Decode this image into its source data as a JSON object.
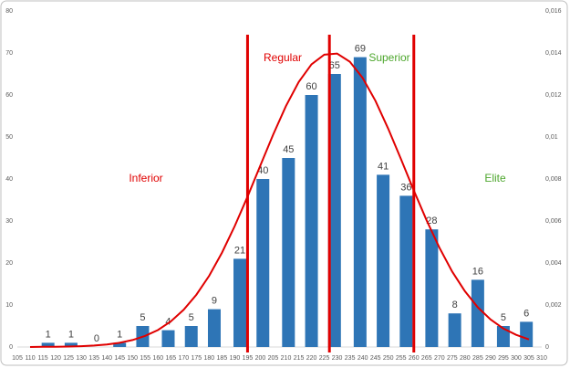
{
  "chart_data": {
    "type": "bar",
    "x": [
      117,
      126,
      136,
      145,
      154,
      164,
      173,
      182,
      192,
      201,
      211,
      220,
      229,
      239,
      248,
      257,
      267,
      276,
      285,
      295,
      304
    ],
    "values": [
      1,
      1,
      0,
      1,
      5,
      4,
      5,
      9,
      21,
      40,
      45,
      60,
      65,
      69,
      41,
      36,
      28,
      8,
      16,
      5,
      6
    ],
    "color": "#2e75b6",
    "xlim": [
      105,
      310
    ],
    "xticks": [
      105,
      110,
      115,
      120,
      125,
      130,
      135,
      140,
      145,
      150,
      155,
      160,
      165,
      170,
      175,
      180,
      185,
      190,
      195,
      200,
      205,
      210,
      215,
      220,
      225,
      230,
      235,
      240,
      245,
      250,
      255,
      260,
      265,
      270,
      275,
      280,
      285,
      290,
      295,
      300,
      305,
      310
    ],
    "ylim": [
      0,
      80
    ],
    "yticks": [
      0,
      10,
      20,
      30,
      40,
      50,
      60,
      70,
      80
    ],
    "y2lim": [
      0,
      0.016
    ],
    "y2ticks": [
      0,
      {
        "value": 0.002,
        "label": "0,002"
      },
      {
        "value": 0.004,
        "label": "0,004"
      },
      {
        "value": 0.006,
        "label": "0,006"
      },
      {
        "value": 0.008,
        "label": "0,008"
      },
      {
        "value": 0.01,
        "label": "0,01"
      },
      {
        "value": 0.012,
        "label": "0,012"
      },
      {
        "value": 0.014,
        "label": "0,014"
      },
      {
        "value": 0.016,
        "label": "0,016"
      }
    ],
    "curve": {
      "axis": "y2",
      "color": "#e00000",
      "x": [
        110,
        115,
        120,
        125,
        130,
        135,
        140,
        145,
        150,
        155,
        160,
        165,
        170,
        175,
        180,
        185,
        190,
        195,
        200,
        205,
        210,
        215,
        220,
        225,
        230,
        235,
        240,
        245,
        250,
        255,
        260,
        265,
        270,
        275,
        280,
        285,
        290,
        295,
        300,
        305
      ],
      "values": [
        0,
        1e-05,
        1e-05,
        2e-05,
        4e-05,
        7e-05,
        0.00012,
        0.0002,
        0.00033,
        0.00053,
        0.00081,
        0.00122,
        0.00177,
        0.00249,
        0.00339,
        0.00449,
        0.00576,
        0.00716,
        0.00864,
        0.01011,
        0.01147,
        0.01262,
        0.01346,
        0.01392,
        0.01397,
        0.01358,
        0.01281,
        0.01172,
        0.01039,
        0.00894,
        0.00745,
        0.00603,
        0.00473,
        0.00359,
        0.00265,
        0.00189,
        0.00131,
        0.00088,
        0.00058,
        0.00036
      ]
    },
    "vlines": [
      195,
      227,
      260
    ],
    "vline_color": "#e00000",
    "annotations": [
      {
        "text": "Inferior",
        "color": "#e00000"
      },
      {
        "text": "Regular",
        "color": "#e00000"
      },
      {
        "text": "Superior",
        "color": "#4ea72e"
      },
      {
        "text": "Elite",
        "color": "#4ea72e"
      }
    ]
  }
}
